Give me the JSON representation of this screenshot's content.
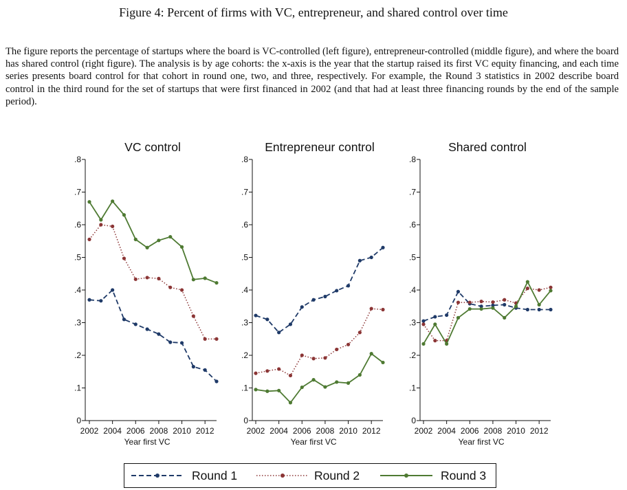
{
  "figure_title": "Figure 4: Percent of firms with VC, entrepreneur, and shared control over time",
  "caption": "The figure reports the percentage of startups where the board is VC-controlled (left figure), entrepreneur-controlled (middle figure), and where the board has shared control (right figure). The analysis is by age cohorts: the x-axis is the year that the startup raised its first VC equity financing, and each time series presents board control for that cohort in round one, two, and three, respectively. For example, the Round 3 statistics in 2002 describe board control in the third round for the set of startups that were first financed in 2002 (and that had at least three financing rounds by the end of the sample period).",
  "colors": {
    "round1": "#1f3a68",
    "round2": "#8b3535",
    "round3": "#4e7a32"
  },
  "legend": {
    "round1": "Round 1",
    "round2": "Round 2",
    "round3": "Round 3"
  },
  "chart_data": [
    {
      "type": "line",
      "title": "VC control",
      "xlabel": "Year first VC",
      "ylabel": "",
      "ylim": [
        0,
        0.8
      ],
      "yticks": [
        0,
        0.1,
        0.2,
        0.3,
        0.4,
        0.5,
        0.6,
        0.7,
        0.8
      ],
      "ytick_labels": [
        "0",
        ".1",
        ".2",
        ".3",
        ".4",
        ".5",
        ".6",
        ".7",
        ".8"
      ],
      "xlim": [
        2002,
        2013
      ],
      "xticks": [
        2002,
        2004,
        2006,
        2008,
        2010,
        2012
      ],
      "x": [
        2002,
        2003,
        2004,
        2005,
        2006,
        2007,
        2008,
        2009,
        2010,
        2011,
        2012,
        2013
      ],
      "series": [
        {
          "name": "Round 1",
          "values": [
            0.37,
            0.367,
            0.4,
            0.31,
            0.295,
            0.28,
            0.265,
            0.24,
            0.238,
            0.165,
            0.155,
            0.12
          ]
        },
        {
          "name": "Round 2",
          "values": [
            0.555,
            0.6,
            0.595,
            0.497,
            0.433,
            0.438,
            0.435,
            0.408,
            0.4,
            0.32,
            0.25,
            0.25
          ]
        },
        {
          "name": "Round 3",
          "values": [
            0.67,
            0.615,
            0.672,
            0.63,
            0.555,
            0.53,
            0.552,
            0.563,
            0.532,
            0.432,
            0.436,
            0.422
          ]
        }
      ]
    },
    {
      "type": "line",
      "title": "Entrepreneur control",
      "xlabel": "Year first VC",
      "ylabel": "",
      "ylim": [
        0,
        0.8
      ],
      "yticks": [
        0,
        0.1,
        0.2,
        0.3,
        0.4,
        0.5,
        0.6,
        0.7,
        0.8
      ],
      "ytick_labels": [
        "0",
        ".1",
        ".2",
        ".3",
        ".4",
        ".5",
        ".6",
        ".7",
        ".8"
      ],
      "xlim": [
        2002,
        2013
      ],
      "xticks": [
        2002,
        2004,
        2006,
        2008,
        2010,
        2012
      ],
      "x": [
        2002,
        2003,
        2004,
        2005,
        2006,
        2007,
        2008,
        2009,
        2010,
        2011,
        2012,
        2013
      ],
      "series": [
        {
          "name": "Round 1",
          "values": [
            0.322,
            0.31,
            0.27,
            0.295,
            0.348,
            0.37,
            0.38,
            0.398,
            0.413,
            0.49,
            0.5,
            0.53
          ]
        },
        {
          "name": "Round 2",
          "values": [
            0.145,
            0.152,
            0.158,
            0.138,
            0.2,
            0.19,
            0.192,
            0.218,
            0.233,
            0.27,
            0.343,
            0.34
          ]
        },
        {
          "name": "Round 3",
          "values": [
            0.095,
            0.09,
            0.092,
            0.055,
            0.102,
            0.125,
            0.103,
            0.118,
            0.115,
            0.14,
            0.205,
            0.178
          ]
        }
      ]
    },
    {
      "type": "line",
      "title": "Shared control",
      "xlabel": "Year first VC",
      "ylabel": "",
      "ylim": [
        0,
        0.8
      ],
      "yticks": [
        0,
        0.1,
        0.2,
        0.3,
        0.4,
        0.5,
        0.6,
        0.7,
        0.8
      ],
      "ytick_labels": [
        "0",
        ".1",
        ".2",
        ".3",
        ".4",
        ".5",
        ".6",
        ".7",
        ".8"
      ],
      "xlim": [
        2002,
        2013
      ],
      "xticks": [
        2002,
        2004,
        2006,
        2008,
        2010,
        2012
      ],
      "x": [
        2002,
        2003,
        2004,
        2005,
        2006,
        2007,
        2008,
        2009,
        2010,
        2011,
        2012,
        2013
      ],
      "series": [
        {
          "name": "Round 1",
          "values": [
            0.305,
            0.318,
            0.323,
            0.395,
            0.358,
            0.35,
            0.353,
            0.355,
            0.345,
            0.34,
            0.34,
            0.34
          ]
        },
        {
          "name": "Round 2",
          "values": [
            0.295,
            0.245,
            0.245,
            0.362,
            0.362,
            0.365,
            0.363,
            0.37,
            0.36,
            0.405,
            0.4,
            0.408
          ]
        },
        {
          "name": "Round 3",
          "values": [
            0.235,
            0.295,
            0.235,
            0.315,
            0.342,
            0.342,
            0.345,
            0.315,
            0.35,
            0.425,
            0.355,
            0.398
          ]
        }
      ]
    }
  ]
}
